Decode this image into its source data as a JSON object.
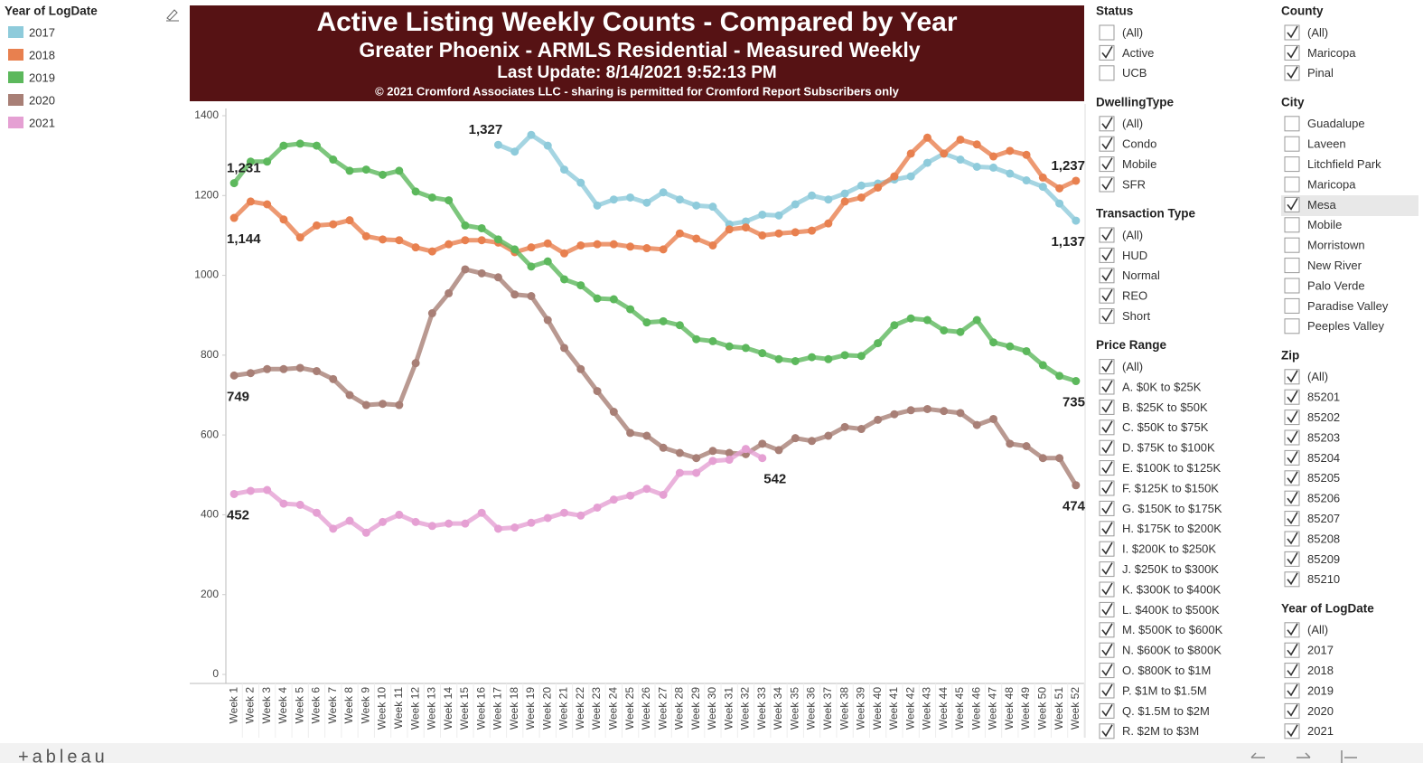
{
  "chart_data": {
    "type": "line",
    "title": "Active Listing Weekly Counts - Compared by Year",
    "subtitle": "Greater Phoenix - ARMLS Residential - Measured Weekly",
    "annotations": [
      "Last Update: 8/14/2021 9:52:13 PM",
      "© 2021 Cromford Associates LLC - sharing is permitted for Cromford Report Subscribers only"
    ],
    "legend_title": "Year of LogDate",
    "categories": [
      "Week 1",
      "Week 2",
      "Week 3",
      "Week 4",
      "Week 5",
      "Week 6",
      "Week 7",
      "Week 8",
      "Week 9",
      "Week 10",
      "Week 11",
      "Week 12",
      "Week 13",
      "Week 14",
      "Week 15",
      "Week 16",
      "Week 17",
      "Week 18",
      "Week 19",
      "Week 20",
      "Week 21",
      "Week 22",
      "Week 23",
      "Week 24",
      "Week 25",
      "Week 26",
      "Week 27",
      "Week 28",
      "Week 29",
      "Week 30",
      "Week 31",
      "Week 32",
      "Week 33",
      "Week 34",
      "Week 35",
      "Week 36",
      "Week 37",
      "Week 38",
      "Week 39",
      "Week 40",
      "Week 41",
      "Week 42",
      "Week 43",
      "Week 44",
      "Week 45",
      "Week 46",
      "Week 47",
      "Week 48",
      "Week 49",
      "Week 50",
      "Week 51",
      "Week 52"
    ],
    "ylim": [
      0,
      1400
    ],
    "yticks": [
      0,
      200,
      400,
      600,
      800,
      1000,
      1200,
      1400
    ],
    "grid": false,
    "series": [
      {
        "name": "2017",
        "color": "#8ecbdb",
        "values": [
          null,
          null,
          null,
          null,
          null,
          null,
          null,
          null,
          null,
          null,
          null,
          null,
          null,
          null,
          null,
          null,
          1327,
          1310,
          1352,
          1325,
          1265,
          1232,
          1175,
          1190,
          1195,
          1182,
          1208,
          1190,
          1175,
          1172,
          1128,
          1135,
          1152,
          1150,
          1178,
          1200,
          1190,
          1205,
          1225,
          1230,
          1240,
          1248,
          1282,
          1305,
          1290,
          1272,
          1270,
          1255,
          1238,
          1222,
          1180,
          1137
        ],
        "value_labels": [
          null,
          null,
          null,
          null,
          null,
          null,
          null,
          null,
          null,
          null,
          null,
          null,
          null,
          null,
          null,
          null,
          "1,327",
          null,
          null,
          null,
          null,
          null,
          null,
          null,
          null,
          null,
          null,
          null,
          null,
          null,
          null,
          null,
          null,
          null,
          null,
          null,
          null,
          null,
          null,
          null,
          null,
          null,
          null,
          null,
          null,
          null,
          null,
          null,
          null,
          null,
          null,
          "1,137"
        ]
      },
      {
        "name": "2018",
        "color": "#e8804f",
        "values": [
          1144,
          1185,
          1178,
          1140,
          1095,
          1125,
          1128,
          1138,
          1098,
          1090,
          1088,
          1070,
          1060,
          1078,
          1088,
          1088,
          1082,
          1058,
          1070,
          1080,
          1055,
          1075,
          1078,
          1078,
          1072,
          1068,
          1065,
          1105,
          1092,
          1075,
          1115,
          1120,
          1100,
          1105,
          1108,
          1112,
          1130,
          1185,
          1195,
          1220,
          1248,
          1305,
          1345,
          1305,
          1340,
          1328,
          1298,
          1312,
          1302,
          1245,
          1218,
          1237
        ],
        "value_labels": [
          "1,144",
          null,
          null,
          null,
          null,
          null,
          null,
          null,
          null,
          null,
          null,
          null,
          null,
          null,
          null,
          null,
          null,
          null,
          null,
          null,
          null,
          null,
          null,
          null,
          null,
          null,
          null,
          null,
          null,
          null,
          null,
          null,
          null,
          null,
          null,
          null,
          null,
          null,
          null,
          null,
          null,
          null,
          null,
          null,
          null,
          null,
          null,
          null,
          null,
          null,
          null,
          "1,237"
        ]
      },
      {
        "name": "2019",
        "color": "#5cb85c",
        "values": [
          1231,
          1285,
          1285,
          1325,
          1330,
          1325,
          1290,
          1262,
          1265,
          1252,
          1262,
          1210,
          1195,
          1188,
          1125,
          1118,
          1090,
          1065,
          1022,
          1035,
          990,
          975,
          942,
          940,
          915,
          882,
          885,
          875,
          840,
          835,
          822,
          818,
          805,
          790,
          785,
          795,
          790,
          800,
          798,
          830,
          875,
          892,
          888,
          862,
          858,
          888,
          832,
          822,
          810,
          775,
          748,
          735
        ],
        "value_labels": [
          "1,231",
          null,
          null,
          null,
          null,
          null,
          null,
          null,
          null,
          null,
          null,
          null,
          null,
          null,
          null,
          null,
          null,
          null,
          null,
          null,
          null,
          null,
          null,
          null,
          null,
          null,
          null,
          null,
          null,
          null,
          null,
          null,
          null,
          null,
          null,
          null,
          null,
          null,
          null,
          null,
          null,
          null,
          null,
          null,
          null,
          null,
          null,
          null,
          null,
          null,
          null,
          "735"
        ]
      },
      {
        "name": "2020",
        "color": "#a87f76",
        "values": [
          749,
          755,
          765,
          765,
          768,
          760,
          740,
          700,
          675,
          678,
          675,
          780,
          905,
          955,
          1015,
          1005,
          995,
          952,
          948,
          888,
          818,
          765,
          710,
          658,
          605,
          598,
          568,
          555,
          542,
          560,
          555,
          552,
          578,
          562,
          592,
          585,
          598,
          620,
          615,
          638,
          652,
          662,
          665,
          660,
          655,
          625,
          640,
          578,
          572,
          542,
          542,
          474
        ],
        "value_labels": [
          "749",
          null,
          null,
          null,
          null,
          null,
          null,
          null,
          null,
          null,
          null,
          null,
          null,
          null,
          null,
          null,
          null,
          null,
          null,
          null,
          null,
          null,
          null,
          null,
          null,
          null,
          null,
          null,
          null,
          null,
          null,
          null,
          null,
          null,
          null,
          null,
          null,
          null,
          null,
          null,
          null,
          null,
          null,
          null,
          null,
          null,
          null,
          null,
          null,
          null,
          null,
          "474"
        ]
      },
      {
        "name": "2021",
        "color": "#e5a0d3",
        "values": [
          452,
          460,
          462,
          428,
          425,
          405,
          365,
          385,
          355,
          382,
          400,
          382,
          372,
          378,
          378,
          405,
          365,
          368,
          380,
          392,
          405,
          398,
          418,
          438,
          448,
          465,
          450,
          505,
          505,
          535,
          538,
          565,
          542,
          null,
          null,
          null,
          null,
          null,
          null,
          null,
          null,
          null,
          null,
          null,
          null,
          null,
          null,
          null,
          null,
          null,
          null,
          null
        ],
        "value_labels": [
          "452",
          null,
          null,
          null,
          null,
          null,
          null,
          null,
          null,
          null,
          null,
          null,
          null,
          null,
          null,
          null,
          null,
          null,
          null,
          null,
          null,
          null,
          null,
          null,
          null,
          null,
          null,
          null,
          null,
          null,
          null,
          null,
          "542",
          null,
          null,
          null,
          null,
          null,
          null,
          null,
          null,
          null,
          null,
          null,
          null,
          null,
          null,
          null,
          null,
          null,
          null,
          null
        ]
      }
    ]
  },
  "filters": [
    {
      "title": "Status",
      "options": [
        {
          "label": "(All)",
          "checked": false
        },
        {
          "label": "Active",
          "checked": true
        },
        {
          "label": "UCB",
          "checked": false
        }
      ]
    },
    {
      "title": "DwellingType",
      "options": [
        {
          "label": "(All)",
          "checked": true
        },
        {
          "label": "Condo",
          "checked": true
        },
        {
          "label": "Mobile",
          "checked": true
        },
        {
          "label": "SFR",
          "checked": true
        }
      ]
    },
    {
      "title": "Transaction Type",
      "options": [
        {
          "label": "(All)",
          "checked": true
        },
        {
          "label": "HUD",
          "checked": true
        },
        {
          "label": "Normal",
          "checked": true
        },
        {
          "label": "REO",
          "checked": true
        },
        {
          "label": "Short",
          "checked": true
        }
      ]
    },
    {
      "title": "Price Range",
      "options": [
        {
          "label": "(All)",
          "checked": true
        },
        {
          "label": "A. $0K to $25K",
          "checked": true
        },
        {
          "label": "B. $25K to $50K",
          "checked": true
        },
        {
          "label": "C. $50K to $75K",
          "checked": true
        },
        {
          "label": "D. $75K to $100K",
          "checked": true
        },
        {
          "label": "E. $100K to $125K",
          "checked": true
        },
        {
          "label": "F. $125K to $150K",
          "checked": true
        },
        {
          "label": "G. $150K to $175K",
          "checked": true
        },
        {
          "label": "H. $175K to $200K",
          "checked": true
        },
        {
          "label": "I. $200K to $250K",
          "checked": true
        },
        {
          "label": "J. $250K to $300K",
          "checked": true
        },
        {
          "label": "K. $300K to $400K",
          "checked": true
        },
        {
          "label": "L. $400K to $500K",
          "checked": true
        },
        {
          "label": "M. $500K to $600K",
          "checked": true
        },
        {
          "label": "N. $600K to $800K",
          "checked": true
        },
        {
          "label": "O. $800K to $1M",
          "checked": true
        },
        {
          "label": "P. $1M to $1.5M",
          "checked": true
        },
        {
          "label": "Q. $1.5M to $2M",
          "checked": true
        },
        {
          "label": "R. $2M to $3M",
          "checked": true
        }
      ]
    },
    {
      "title": "County",
      "options": [
        {
          "label": "(All)",
          "checked": true
        },
        {
          "label": "Maricopa",
          "checked": true
        },
        {
          "label": "Pinal",
          "checked": true
        }
      ]
    },
    {
      "title": "City",
      "options": [
        {
          "label": "Guadalupe",
          "checked": false
        },
        {
          "label": "Laveen",
          "checked": false
        },
        {
          "label": "Litchfield Park",
          "checked": false
        },
        {
          "label": "Maricopa",
          "checked": false
        },
        {
          "label": "Mesa",
          "checked": true
        },
        {
          "label": "Mobile",
          "checked": false
        },
        {
          "label": "Morristown",
          "checked": false
        },
        {
          "label": "New River",
          "checked": false
        },
        {
          "label": "Palo Verde",
          "checked": false
        },
        {
          "label": "Paradise Valley",
          "checked": false
        },
        {
          "label": "Peeples Valley",
          "checked": false
        }
      ]
    },
    {
      "title": "Zip",
      "options": [
        {
          "label": "(All)",
          "checked": true
        },
        {
          "label": "85201",
          "checked": true
        },
        {
          "label": "85202",
          "checked": true
        },
        {
          "label": "85203",
          "checked": true
        },
        {
          "label": "85204",
          "checked": true
        },
        {
          "label": "85205",
          "checked": true
        },
        {
          "label": "85206",
          "checked": true
        },
        {
          "label": "85207",
          "checked": true
        },
        {
          "label": "85208",
          "checked": true
        },
        {
          "label": "85209",
          "checked": true
        },
        {
          "label": "85210",
          "checked": true
        }
      ]
    },
    {
      "title": "Year of LogDate",
      "options": [
        {
          "label": "(All)",
          "checked": true
        },
        {
          "label": "2017",
          "checked": true
        },
        {
          "label": "2018",
          "checked": true
        },
        {
          "label": "2019",
          "checked": true
        },
        {
          "label": "2020",
          "checked": true
        },
        {
          "label": "2021",
          "checked": true
        }
      ]
    }
  ],
  "footer": {
    "brand": "+ableau"
  }
}
